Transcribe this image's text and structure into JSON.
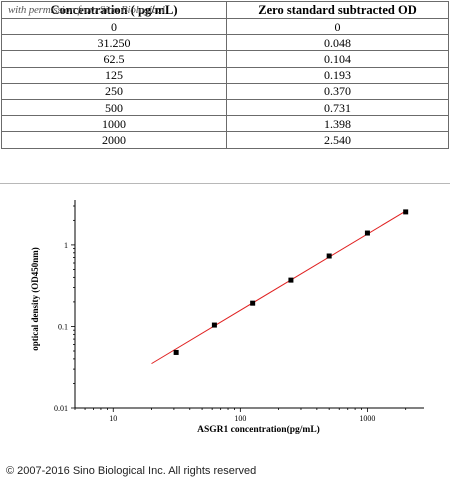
{
  "watermark_text": "with permission from Sino Biological",
  "table": {
    "headers": [
      "Concentration ( pg/mL)",
      "Zero standard subtracted OD"
    ],
    "rows": [
      [
        "0",
        "0"
      ],
      [
        "31.250",
        "0.048"
      ],
      [
        "62.5",
        "0.104"
      ],
      [
        "125",
        "0.193"
      ],
      [
        "250",
        "0.370"
      ],
      [
        "500",
        "0.731"
      ],
      [
        "1000",
        "1.398"
      ],
      [
        "2000",
        "2.540"
      ]
    ]
  },
  "chart_data": {
    "type": "scatter",
    "scale": "log-log",
    "xlabel": "ASGR1  concentration(pg/mL)",
    "ylabel": "optical density (OD450nm)",
    "xlim": [
      5,
      2500
    ],
    "ylim": [
      0.01,
      3
    ],
    "x_ticks": [
      10,
      100,
      1000
    ],
    "x_tick_labels": [
      "10",
      "100",
      "1000"
    ],
    "y_ticks": [
      0.01,
      0.1,
      1
    ],
    "y_tick_labels": [
      "0.01",
      "0.1",
      "1"
    ],
    "points": [
      {
        "x": 31.25,
        "y": 0.048
      },
      {
        "x": 62.5,
        "y": 0.104
      },
      {
        "x": 125,
        "y": 0.193
      },
      {
        "x": 250,
        "y": 0.37
      },
      {
        "x": 500,
        "y": 0.731
      },
      {
        "x": 1000,
        "y": 1.398
      },
      {
        "x": 2000,
        "y": 2.54
      }
    ],
    "fit_line": {
      "x": [
        20,
        2000
      ],
      "y": [
        0.035,
        2.6
      ],
      "color": "#e02020"
    },
    "marker_color": "#000000",
    "grid": false
  },
  "copyright": "© 2007-2016 Sino Biological Inc. All rights reserved"
}
